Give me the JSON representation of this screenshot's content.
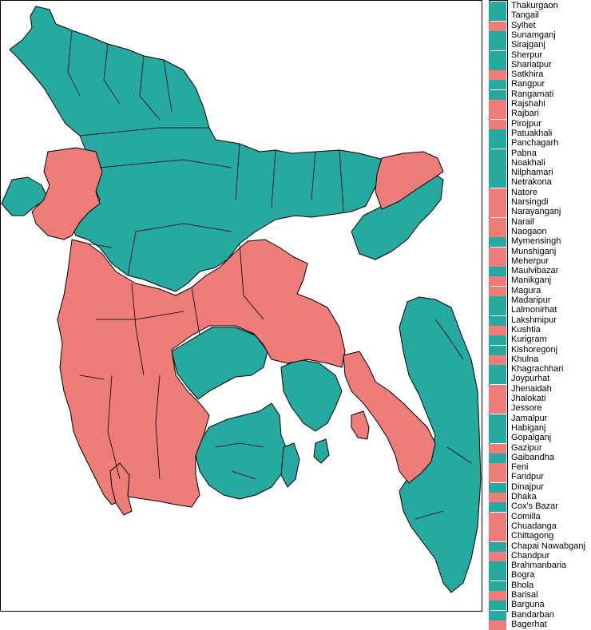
{
  "colors": {
    "high": "#26aaa0",
    "low": "#ee7c78",
    "border": "#000000",
    "background": "#ffffff"
  },
  "legend": {
    "items": [
      {
        "label": "Thakurgaon",
        "group": "high"
      },
      {
        "label": "Tangail",
        "group": "high"
      },
      {
        "label": "Sylhet",
        "group": "low"
      },
      {
        "label": "Sunamganj",
        "group": "high"
      },
      {
        "label": "Sirajganj",
        "group": "high"
      },
      {
        "label": "Sherpur",
        "group": "high"
      },
      {
        "label": "Shariatpur",
        "group": "high"
      },
      {
        "label": "Satkhira",
        "group": "low"
      },
      {
        "label": "Rangpur",
        "group": "high"
      },
      {
        "label": "Rangamati",
        "group": "high"
      },
      {
        "label": "Rajshahi",
        "group": "low"
      },
      {
        "label": "Rajbari",
        "group": "low"
      },
      {
        "label": "Pirojpur",
        "group": "low"
      },
      {
        "label": "Patuakhali",
        "group": "high"
      },
      {
        "label": "Panchagarh",
        "group": "high"
      },
      {
        "label": "Pabna",
        "group": "high"
      },
      {
        "label": "Noakhali",
        "group": "high"
      },
      {
        "label": "Nilphamari",
        "group": "high"
      },
      {
        "label": "Netrakona",
        "group": "high"
      },
      {
        "label": "Natore",
        "group": "low"
      },
      {
        "label": "Narsingdi",
        "group": "low"
      },
      {
        "label": "Narayanganj",
        "group": "low"
      },
      {
        "label": "Narail",
        "group": "low"
      },
      {
        "label": "Naogaon",
        "group": "low"
      },
      {
        "label": "Mymensingh",
        "group": "high"
      },
      {
        "label": "Munshiganj",
        "group": "low"
      },
      {
        "label": "Meherpur",
        "group": "low"
      },
      {
        "label": "Maulvibazar",
        "group": "high"
      },
      {
        "label": "Manikganj",
        "group": "low"
      },
      {
        "label": "Magura",
        "group": "low"
      },
      {
        "label": "Madaripur",
        "group": "high"
      },
      {
        "label": "Lalmonirhat",
        "group": "high"
      },
      {
        "label": "Lakshmipur",
        "group": "high"
      },
      {
        "label": "Kushtia",
        "group": "low"
      },
      {
        "label": "Kurigram",
        "group": "high"
      },
      {
        "label": "Kishoregonj",
        "group": "high"
      },
      {
        "label": "Khulna",
        "group": "low"
      },
      {
        "label": "Khagrachhari",
        "group": "high"
      },
      {
        "label": "Joypurhat",
        "group": "high"
      },
      {
        "label": "Jhenaidah",
        "group": "low"
      },
      {
        "label": "Jhalokati",
        "group": "low"
      },
      {
        "label": "Jessore",
        "group": "low"
      },
      {
        "label": "Jamalpur",
        "group": "high"
      },
      {
        "label": "Habiganj",
        "group": "high"
      },
      {
        "label": "Gopalganj",
        "group": "high"
      },
      {
        "label": "Gazipur",
        "group": "low"
      },
      {
        "label": "Gaibandha",
        "group": "high"
      },
      {
        "label": "Feni",
        "group": "low"
      },
      {
        "label": "Faridpur",
        "group": "low"
      },
      {
        "label": "Dinajpur",
        "group": "high"
      },
      {
        "label": "Dhaka",
        "group": "low"
      },
      {
        "label": "Cox's Bazar",
        "group": "high"
      },
      {
        "label": "Comilla",
        "group": "low"
      },
      {
        "label": "Chuadanga",
        "group": "low"
      },
      {
        "label": "Chittagong",
        "group": "low"
      },
      {
        "label": "Chapai Nawabganj",
        "group": "high"
      },
      {
        "label": "Chandpur",
        "group": "low"
      },
      {
        "label": "Brahmanbaria",
        "group": "high"
      },
      {
        "label": "Bogra",
        "group": "high"
      },
      {
        "label": "Bhola",
        "group": "high"
      },
      {
        "label": "Barisal",
        "group": "low"
      },
      {
        "label": "Barguna",
        "group": "high"
      },
      {
        "label": "Bandarban",
        "group": "high"
      },
      {
        "label": "Bagerhat",
        "group": "low"
      }
    ]
  }
}
